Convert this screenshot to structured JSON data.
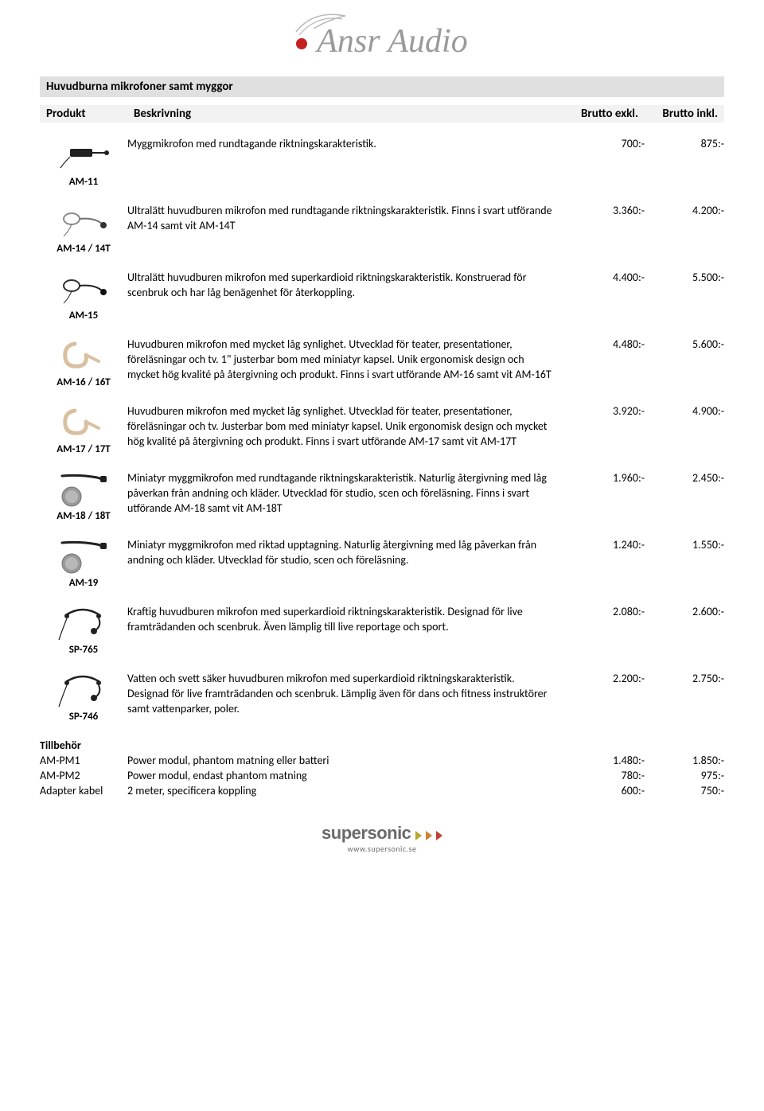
{
  "logo": {
    "text": "Ansr Audio"
  },
  "section_title": "Huvudburna mikrofoner samt myggor",
  "columns": {
    "product": "Produkt",
    "desc": "Beskrivning",
    "p1": "Brutto exkl.",
    "p2": "Brutto inkl."
  },
  "rows": [
    {
      "code": "AM-11",
      "icon": "lavalier",
      "desc": "Myggmikrofon med rundtagande riktningskarakteristik.",
      "p1": "700:-",
      "p2": "875:-"
    },
    {
      "code": "AM-14 / 14T",
      "icon": "earset-wire",
      "desc": "Ultralätt huvudburen mikrofon med rundtagande riktningskarakteristik. Finns i svart utförande AM-14 samt vit AM-14T",
      "p1": "3.360:-",
      "p2": "4.200:-"
    },
    {
      "code": "AM-15",
      "icon": "earset-wire-dark",
      "desc": "Ultralätt huvudburen mikrofon med superkardioid riktningskarakteristik. Konstruerad för scenbruk och har låg benägenhet för återkoppling.",
      "p1": "4.400:-",
      "p2": "5.500:-"
    },
    {
      "code": "AM-16 / 16T",
      "icon": "earhook-beige",
      "desc": "Huvudburen mikrofon med mycket låg synlighet. Utvecklad för teater, presentationer, föreläsningar och tv. 1\" justerbar bom med miniatyr kapsel. Unik ergonomisk design och mycket hög kvalité på återgivning och produkt. Finns i svart utförande AM-16 samt vit AM-16T",
      "p1": "4.480:-",
      "p2": "5.600:-"
    },
    {
      "code": "AM-17 / 17T",
      "icon": "earhook-beige",
      "desc": "Huvudburen mikrofon med mycket låg synlighet. Utvecklad för teater, presentationer, föreläsningar och tv. Justerbar bom med miniatyr kapsel. Unik ergonomisk design och mycket hög kvalité på återgivning och produkt. Finns i svart utförande AM-17 samt vit AM-17T",
      "p1": "3.920:-",
      "p2": "4.900:-"
    },
    {
      "code": "AM-18 / 18T",
      "icon": "mini-lavalier-coin",
      "desc": "Miniatyr myggmikrofon med rundtagande riktningskarakteristik. Naturlig återgivning med låg påverkan från andning och kläder. Utvecklad för studio, scen och föreläsning. Finns i svart utförande AM-18 samt vit AM-18T",
      "p1": "1.960:-",
      "p2": "2.450:-"
    },
    {
      "code": "AM-19",
      "icon": "mini-lavalier-coin",
      "desc": "Miniatyr myggmikrofon med riktad upptagning. Naturlig återgivning med låg påverkan från andning och kläder. Utvecklad för studio, scen och föreläsning.",
      "p1": "1.240:-",
      "p2": "1.550:-"
    },
    {
      "code": "SP-765",
      "icon": "headset-wire",
      "desc": "Kraftig huvudburen mikrofon med superkardioid riktningskarakteristik. Designad för live framträdanden och scenbruk. Även lämplig till live reportage och sport.",
      "p1": "2.080:-",
      "p2": "2.600:-"
    },
    {
      "code": "SP-746",
      "icon": "headset-wire",
      "desc": "Vatten och svett säker huvudburen mikrofon med superkardioid riktningskarakteristik. Designad för live framträdanden och scenbruk. Lämplig även för dans och fitness instruktörer samt vattenparker, poler.",
      "p1": "2.200:-",
      "p2": "2.750:-"
    }
  ],
  "tillbehor": {
    "title": "Tillbehör",
    "items": [
      {
        "code": "AM-PM1",
        "desc": "Power modul, phantom matning eller batteri",
        "p1": "1.480:-",
        "p2": "1.850:-"
      },
      {
        "code": "AM-PM2",
        "desc": "Power modul, endast phantom matning",
        "p1": "780:-",
        "p2": "975:-"
      },
      {
        "code": "Adapter kabel",
        "desc": "2 meter, specificera koppling",
        "p1": "600:-",
        "p2": "750:-"
      }
    ]
  },
  "footer": {
    "brand": "supersonic",
    "url": "www.supersonic.se"
  },
  "colors": {
    "logo_gray": "#9a9a9a",
    "logo_red": "#c42020",
    "section_bg": "#e0e0e0",
    "colhdr_bg": "#f2f2f2",
    "foot_gray": "#6a6a6a",
    "tri1": "#b8a82e",
    "tri2": "#d08030",
    "tri3": "#c04030"
  }
}
